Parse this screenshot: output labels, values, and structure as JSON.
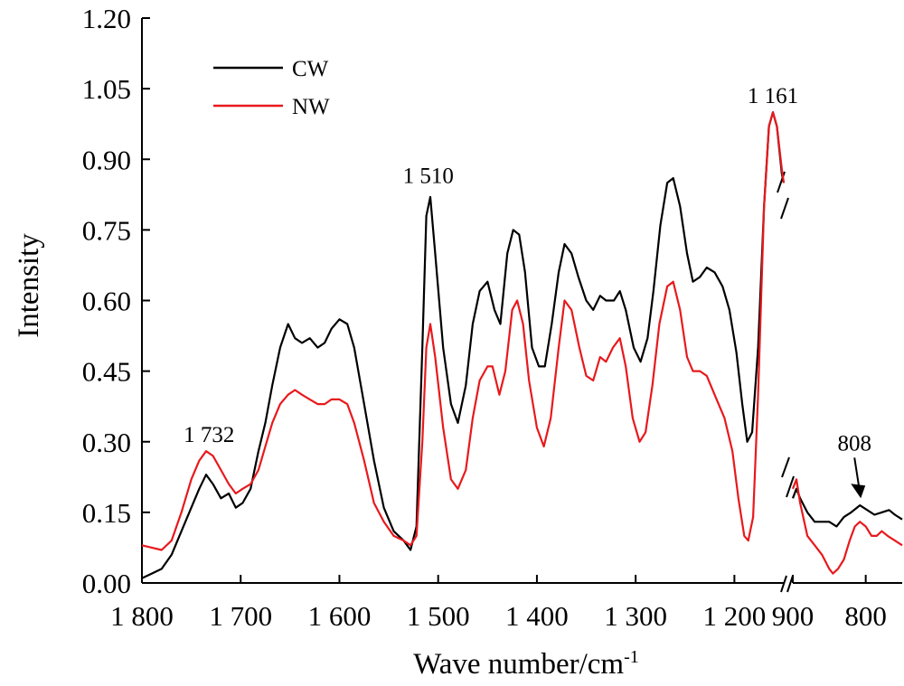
{
  "chart_data": {
    "type": "line",
    "xlabel": "Wave number/cm",
    "xlabel_sup": "-1",
    "ylabel": "Intensity",
    "ylim": [
      0,
      1.2
    ],
    "x_axis_broken": true,
    "x_segments": [
      [
        1800,
        1150
      ],
      [
        900,
        750
      ]
    ],
    "y_ticks": [
      "0.00",
      "0.15",
      "0.30",
      "0.45",
      "0.60",
      "0.75",
      "0.90",
      "1.05",
      "1.20"
    ],
    "x_ticks": [
      {
        "value": 1800,
        "label": "1 800"
      },
      {
        "value": 1700,
        "label": "1 700"
      },
      {
        "value": 1600,
        "label": "1 600"
      },
      {
        "value": 1500,
        "label": "1 500"
      },
      {
        "value": 1400,
        "label": "1 400"
      },
      {
        "value": 1300,
        "label": "1 300"
      },
      {
        "value": 1200,
        "label": "1 200"
      },
      {
        "value": 900,
        "label": "900"
      },
      {
        "value": 800,
        "label": "800"
      }
    ],
    "legend_position": "top-left",
    "series": [
      {
        "name": "CW",
        "color": "#000000",
        "points": [
          [
            1800,
            0.01
          ],
          [
            1790,
            0.02
          ],
          [
            1780,
            0.03
          ],
          [
            1770,
            0.06
          ],
          [
            1760,
            0.11
          ],
          [
            1750,
            0.16
          ],
          [
            1742,
            0.2
          ],
          [
            1735,
            0.23
          ],
          [
            1728,
            0.21
          ],
          [
            1720,
            0.18
          ],
          [
            1712,
            0.19
          ],
          [
            1705,
            0.16
          ],
          [
            1698,
            0.17
          ],
          [
            1690,
            0.2
          ],
          [
            1682,
            0.28
          ],
          [
            1675,
            0.34
          ],
          [
            1668,
            0.42
          ],
          [
            1660,
            0.5
          ],
          [
            1652,
            0.55
          ],
          [
            1645,
            0.52
          ],
          [
            1638,
            0.51
          ],
          [
            1630,
            0.52
          ],
          [
            1622,
            0.5
          ],
          [
            1615,
            0.51
          ],
          [
            1608,
            0.54
          ],
          [
            1600,
            0.56
          ],
          [
            1592,
            0.55
          ],
          [
            1585,
            0.5
          ],
          [
            1575,
            0.38
          ],
          [
            1565,
            0.26
          ],
          [
            1555,
            0.16
          ],
          [
            1545,
            0.11
          ],
          [
            1535,
            0.09
          ],
          [
            1528,
            0.07
          ],
          [
            1522,
            0.12
          ],
          [
            1516,
            0.5
          ],
          [
            1512,
            0.78
          ],
          [
            1508,
            0.82
          ],
          [
            1503,
            0.7
          ],
          [
            1495,
            0.5
          ],
          [
            1487,
            0.38
          ],
          [
            1480,
            0.34
          ],
          [
            1472,
            0.42
          ],
          [
            1465,
            0.55
          ],
          [
            1458,
            0.62
          ],
          [
            1450,
            0.64
          ],
          [
            1443,
            0.58
          ],
          [
            1437,
            0.55
          ],
          [
            1430,
            0.7
          ],
          [
            1424,
            0.75
          ],
          [
            1418,
            0.74
          ],
          [
            1412,
            0.66
          ],
          [
            1405,
            0.5
          ],
          [
            1398,
            0.46
          ],
          [
            1392,
            0.46
          ],
          [
            1385,
            0.55
          ],
          [
            1378,
            0.66
          ],
          [
            1372,
            0.72
          ],
          [
            1365,
            0.7
          ],
          [
            1358,
            0.65
          ],
          [
            1350,
            0.6
          ],
          [
            1343,
            0.58
          ],
          [
            1336,
            0.61
          ],
          [
            1330,
            0.6
          ],
          [
            1322,
            0.6
          ],
          [
            1316,
            0.62
          ],
          [
            1310,
            0.58
          ],
          [
            1302,
            0.5
          ],
          [
            1295,
            0.47
          ],
          [
            1288,
            0.52
          ],
          [
            1282,
            0.62
          ],
          [
            1275,
            0.76
          ],
          [
            1268,
            0.85
          ],
          [
            1262,
            0.86
          ],
          [
            1255,
            0.8
          ],
          [
            1248,
            0.7
          ],
          [
            1242,
            0.64
          ],
          [
            1235,
            0.65
          ],
          [
            1228,
            0.67
          ],
          [
            1220,
            0.66
          ],
          [
            1212,
            0.63
          ],
          [
            1205,
            0.58
          ],
          [
            1198,
            0.49
          ],
          [
            1192,
            0.38
          ],
          [
            1187,
            0.3
          ],
          [
            1182,
            0.32
          ],
          [
            1176,
            0.5
          ],
          [
            1170,
            0.8
          ],
          [
            1165,
            0.97
          ],
          [
            1161,
            1.0
          ],
          [
            1157,
            0.97
          ],
          [
            1152,
            0.87
          ],
          [
            1150,
            0.85
          ],
          [
            900,
            0.18
          ],
          [
            895,
            0.2
          ],
          [
            890,
            0.18
          ],
          [
            880,
            0.15
          ],
          [
            870,
            0.13
          ],
          [
            860,
            0.13
          ],
          [
            850,
            0.13
          ],
          [
            840,
            0.12
          ],
          [
            830,
            0.14
          ],
          [
            820,
            0.15
          ],
          [
            808,
            0.165
          ],
          [
            798,
            0.155
          ],
          [
            788,
            0.145
          ],
          [
            778,
            0.15
          ],
          [
            768,
            0.155
          ],
          [
            760,
            0.145
          ],
          [
            750,
            0.135
          ]
        ]
      },
      {
        "name": "NW",
        "color": "#e8191d",
        "points": [
          [
            1800,
            0.08
          ],
          [
            1790,
            0.075
          ],
          [
            1780,
            0.07
          ],
          [
            1770,
            0.09
          ],
          [
            1760,
            0.15
          ],
          [
            1750,
            0.22
          ],
          [
            1742,
            0.26
          ],
          [
            1735,
            0.28
          ],
          [
            1728,
            0.27
          ],
          [
            1720,
            0.24
          ],
          [
            1712,
            0.21
          ],
          [
            1705,
            0.19
          ],
          [
            1698,
            0.2
          ],
          [
            1690,
            0.21
          ],
          [
            1682,
            0.24
          ],
          [
            1675,
            0.29
          ],
          [
            1668,
            0.34
          ],
          [
            1660,
            0.38
          ],
          [
            1652,
            0.4
          ],
          [
            1645,
            0.41
          ],
          [
            1638,
            0.4
          ],
          [
            1630,
            0.39
          ],
          [
            1622,
            0.38
          ],
          [
            1615,
            0.38
          ],
          [
            1608,
            0.39
          ],
          [
            1600,
            0.39
          ],
          [
            1592,
            0.38
          ],
          [
            1585,
            0.34
          ],
          [
            1575,
            0.26
          ],
          [
            1565,
            0.17
          ],
          [
            1555,
            0.13
          ],
          [
            1545,
            0.1
          ],
          [
            1535,
            0.09
          ],
          [
            1528,
            0.08
          ],
          [
            1522,
            0.1
          ],
          [
            1516,
            0.3
          ],
          [
            1512,
            0.5
          ],
          [
            1508,
            0.55
          ],
          [
            1503,
            0.48
          ],
          [
            1495,
            0.33
          ],
          [
            1487,
            0.22
          ],
          [
            1480,
            0.2
          ],
          [
            1472,
            0.24
          ],
          [
            1465,
            0.35
          ],
          [
            1458,
            0.43
          ],
          [
            1450,
            0.46
          ],
          [
            1445,
            0.46
          ],
          [
            1438,
            0.4
          ],
          [
            1432,
            0.45
          ],
          [
            1425,
            0.58
          ],
          [
            1420,
            0.6
          ],
          [
            1414,
            0.55
          ],
          [
            1408,
            0.43
          ],
          [
            1400,
            0.33
          ],
          [
            1393,
            0.29
          ],
          [
            1386,
            0.35
          ],
          [
            1378,
            0.5
          ],
          [
            1372,
            0.6
          ],
          [
            1365,
            0.58
          ],
          [
            1357,
            0.5
          ],
          [
            1350,
            0.44
          ],
          [
            1343,
            0.43
          ],
          [
            1336,
            0.48
          ],
          [
            1330,
            0.47
          ],
          [
            1323,
            0.5
          ],
          [
            1316,
            0.52
          ],
          [
            1310,
            0.46
          ],
          [
            1303,
            0.35
          ],
          [
            1296,
            0.3
          ],
          [
            1290,
            0.32
          ],
          [
            1283,
            0.42
          ],
          [
            1276,
            0.55
          ],
          [
            1268,
            0.63
          ],
          [
            1262,
            0.64
          ],
          [
            1255,
            0.58
          ],
          [
            1248,
            0.48
          ],
          [
            1242,
            0.45
          ],
          [
            1235,
            0.45
          ],
          [
            1228,
            0.44
          ],
          [
            1220,
            0.4
          ],
          [
            1210,
            0.35
          ],
          [
            1202,
            0.28
          ],
          [
            1196,
            0.18
          ],
          [
            1190,
            0.1
          ],
          [
            1186,
            0.09
          ],
          [
            1181,
            0.14
          ],
          [
            1176,
            0.4
          ],
          [
            1170,
            0.8
          ],
          [
            1165,
            0.97
          ],
          [
            1161,
            1.0
          ],
          [
            1157,
            0.97
          ],
          [
            1152,
            0.88
          ],
          [
            1150,
            0.85
          ],
          [
            900,
            0.2
          ],
          [
            895,
            0.22
          ],
          [
            890,
            0.17
          ],
          [
            880,
            0.1
          ],
          [
            870,
            0.08
          ],
          [
            860,
            0.06
          ],
          [
            850,
            0.03
          ],
          [
            845,
            0.02
          ],
          [
            838,
            0.03
          ],
          [
            830,
            0.05
          ],
          [
            822,
            0.09
          ],
          [
            815,
            0.12
          ],
          [
            808,
            0.13
          ],
          [
            800,
            0.12
          ],
          [
            792,
            0.1
          ],
          [
            785,
            0.1
          ],
          [
            778,
            0.11
          ],
          [
            770,
            0.1
          ],
          [
            760,
            0.09
          ],
          [
            750,
            0.08
          ]
        ]
      }
    ],
    "annotations": [
      {
        "text": "1 732",
        "x": 1732,
        "y": 0.3
      },
      {
        "text": "1 510",
        "x": 1510,
        "y": 0.85
      },
      {
        "text": "1 161",
        "x": 1161,
        "y": 1.02
      },
      {
        "text": "808",
        "x": 808,
        "y": 0.27,
        "arrow": true
      }
    ]
  }
}
